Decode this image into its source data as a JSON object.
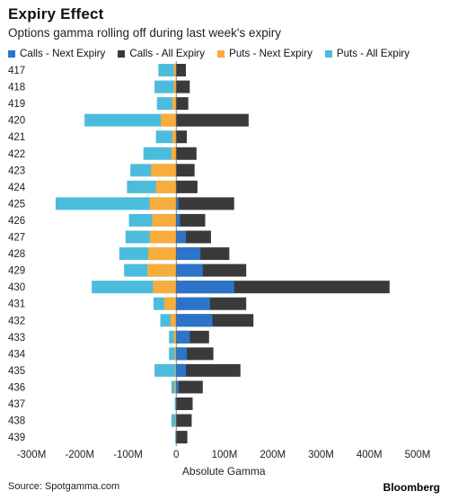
{
  "header": {
    "title": "Expiry Effect",
    "subtitle": "Options gamma rolling off during last week's expiry"
  },
  "footer": {
    "source": "Source: Spotgamma.com",
    "brand": "Bloomberg"
  },
  "colors": {
    "calls_next": "#2b74c9",
    "calls_all": "#3a3a3a",
    "puts_next": "#f6ad3c",
    "puts_all": "#4cbcdd"
  },
  "chart_data": {
    "type": "bar",
    "orientation": "horizontal",
    "xlabel": "Absolute Gamma",
    "xlim": [
      -300,
      500
    ],
    "xticks": [
      -300,
      -200,
      -100,
      0,
      100,
      200,
      300,
      400,
      500
    ],
    "xtick_labels": [
      "-300M",
      "-200M",
      "-100M",
      "0",
      "100M",
      "200M",
      "300M",
      "400M",
      "500M"
    ],
    "legend_position": "top",
    "grid": false,
    "categories": [
      "417",
      "418",
      "419",
      "420",
      "421",
      "422",
      "423",
      "424",
      "425",
      "426",
      "427",
      "428",
      "429",
      "430",
      "431",
      "432",
      "433",
      "434",
      "435",
      "436",
      "437",
      "438",
      "439"
    ],
    "series": [
      {
        "name": "Calls - Next Expiry",
        "key": "calls_next",
        "values": [
          0,
          0,
          0,
          0,
          0,
          0,
          0,
          0,
          5,
          8,
          20,
          50,
          55,
          120,
          70,
          75,
          28,
          22,
          20,
          5,
          0,
          0,
          0
        ]
      },
      {
        "name": "Calls - All Expiry",
        "key": "calls_all",
        "values": [
          20,
          28,
          25,
          150,
          22,
          42,
          38,
          44,
          120,
          60,
          72,
          110,
          145,
          442,
          145,
          160,
          68,
          77,
          133,
          55,
          34,
          32,
          23
        ]
      },
      {
        "name": "Puts - Next Expiry",
        "key": "puts_next",
        "values": [
          -5,
          -5,
          -8,
          -32,
          -8,
          -10,
          -52,
          -42,
          -55,
          -50,
          -55,
          -58,
          -60,
          -48,
          -25,
          -12,
          -5,
          -3,
          -2,
          -3,
          0,
          -2,
          0
        ]
      },
      {
        "name": "Puts - All Expiry",
        "key": "puts_all",
        "values": [
          -37,
          -45,
          -40,
          -190,
          -42,
          -68,
          -95,
          -102,
          -250,
          -98,
          -105,
          -118,
          -108,
          -175,
          -47,
          -33,
          -15,
          -15,
          -45,
          -10,
          -3,
          -10,
          -2
        ]
      }
    ]
  }
}
